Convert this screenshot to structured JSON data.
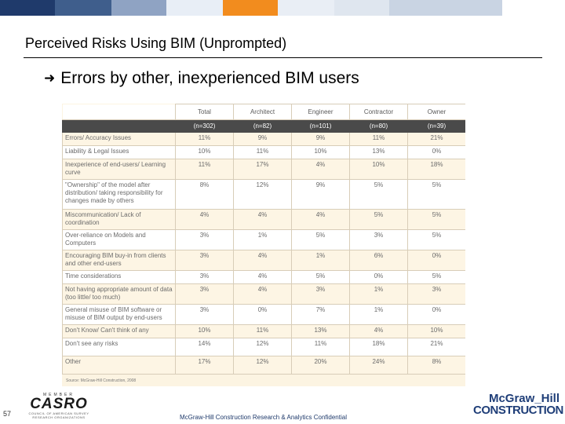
{
  "colors": {
    "top_bar": [
      "#1f3a6b",
      "#3f5e8c",
      "#8fa3c3",
      "#e8eef6",
      "#f28c1e",
      "#e9eef5",
      "#dfe6ef",
      "#c9d4e3"
    ],
    "accent": "#f28c1e",
    "table_header_dark": "#4a4a4a"
  },
  "slide": {
    "title": "Perceived Risks Using BIM (Unprompted)",
    "bullet_icon": "arrow-right-icon",
    "bullet_text": "Errors by other, inexperienced BIM users"
  },
  "table": {
    "columns": [
      "Total",
      "Architect",
      "Engineer",
      "Contractor",
      "Owner"
    ],
    "bases": [
      "(n=302)",
      "(n=82)",
      "(n=101)",
      "(n=80)",
      "(n=39)"
    ],
    "rows": [
      {
        "label": "Errors/ Accuracy Issues",
        "values": [
          "11%",
          "9%",
          "9%",
          "11%",
          "21%"
        ]
      },
      {
        "label": "Liability & Legal Issues",
        "values": [
          "10%",
          "11%",
          "10%",
          "13%",
          "0%"
        ]
      },
      {
        "label": "Inexperience of end-users/ Learning curve",
        "values": [
          "11%",
          "17%",
          "4%",
          "10%",
          "18%"
        ]
      },
      {
        "label": "\"Ownership\" of the model after distribution/ taking responsibility for changes made by others",
        "values": [
          "8%",
          "12%",
          "9%",
          "5%",
          "5%"
        ]
      },
      {
        "label": "Miscommunication/ Lack of coordination",
        "values": [
          "4%",
          "4%",
          "4%",
          "5%",
          "5%"
        ]
      },
      {
        "label": "Over-reliance on Models and Computers",
        "values": [
          "3%",
          "1%",
          "5%",
          "3%",
          "5%"
        ]
      },
      {
        "label": "Encouraging BIM buy-in from clients and other end-users",
        "values": [
          "3%",
          "4%",
          "1%",
          "6%",
          "0%"
        ]
      },
      {
        "label": "Time considerations",
        "values": [
          "3%",
          "4%",
          "5%",
          "0%",
          "5%"
        ]
      },
      {
        "label": "Not having appropriate amount of data (too little/ too much)",
        "values": [
          "3%",
          "4%",
          "3%",
          "1%",
          "3%"
        ]
      },
      {
        "label": "General misuse of BIM software or misuse of BIM output by end-users",
        "values": [
          "3%",
          "0%",
          "7%",
          "1%",
          "0%"
        ]
      },
      {
        "label": "Don't Know/ Can't think of any",
        "values": [
          "10%",
          "11%",
          "13%",
          "4%",
          "10%"
        ]
      },
      {
        "label": "Don't see any risks",
        "values": [
          "14%",
          "12%",
          "11%",
          "18%",
          "21%"
        ]
      },
      {
        "label": "Other",
        "values": [
          "17%",
          "12%",
          "20%",
          "24%",
          "8%"
        ]
      }
    ],
    "source": "Source: McGraw-Hill Construction, 2008"
  },
  "footer": {
    "page_number": "57",
    "casro_top": "MEMBER",
    "casro_logo": "CASRO",
    "casro_sub": "COUNCIL OF AMERICAN SURVEY RESEARCH ORGANIZATIONS",
    "confidential": "McGraw-Hill Construction Research & Analytics Confidential",
    "brand_line1": "McGraw_Hill",
    "brand_line2": "CONSTRUCTION"
  }
}
